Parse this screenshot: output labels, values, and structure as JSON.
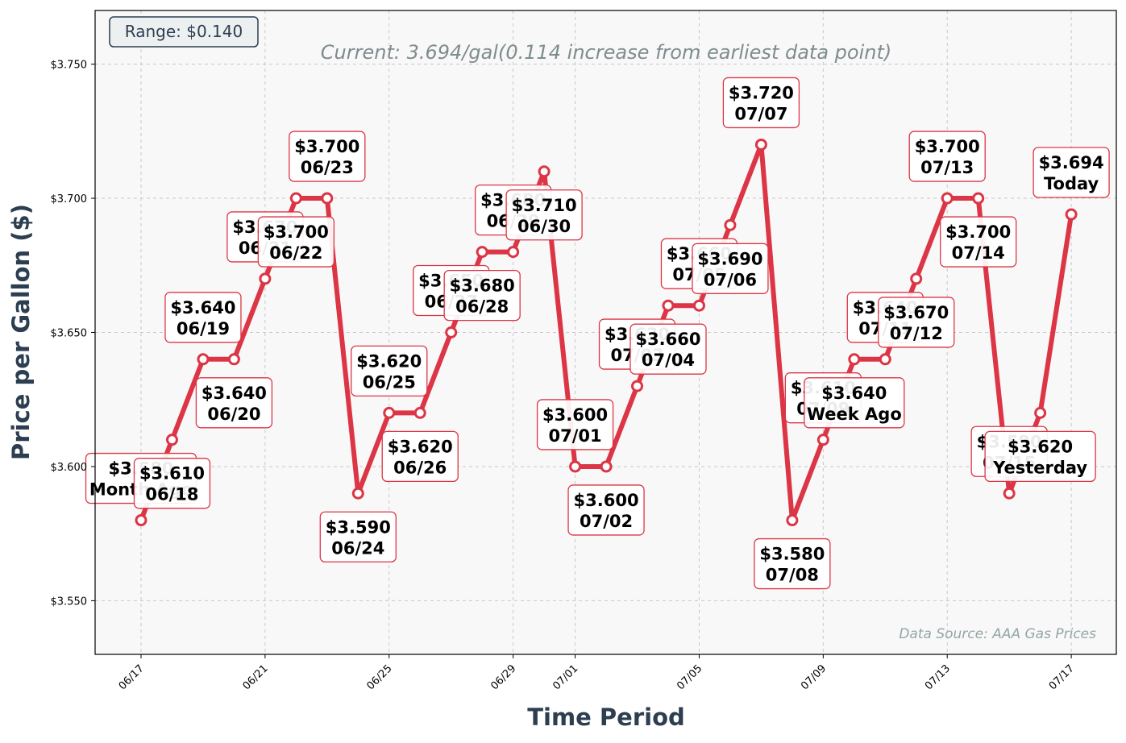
{
  "chart_data": {
    "type": "line",
    "subtitle": "Current: 3.694/gal(0.114 increase from earliest data point)",
    "range_badge": "Range: $0.140",
    "source_note": "Data Source: AAA Gas Prices",
    "xlabel": "Time Period",
    "ylabel": "Price per Gallon ($)",
    "ylim": [
      3.53,
      3.77
    ],
    "yticks": [
      3.55,
      3.6,
      3.65,
      3.7,
      3.75
    ],
    "ytick_labels": [
      "$3.550",
      "$3.600",
      "$3.650",
      "$3.700",
      "$3.750"
    ],
    "xtick_labels": [
      "06/17",
      "06/21",
      "06/25",
      "06/29",
      "07/01",
      "07/05",
      "07/09",
      "07/13",
      "07/17"
    ],
    "grid": true,
    "line_color": "#dc3545",
    "series": [
      {
        "values": [
          {
            "x": "06/17",
            "y": 3.58,
            "label_price": "$3.580",
            "label_date": "Month Ago"
          },
          {
            "x": "06/18",
            "y": 3.61,
            "label_price": "$3.610",
            "label_date": "06/18"
          },
          {
            "x": "06/19",
            "y": 3.64,
            "label_price": "$3.640",
            "label_date": "06/19"
          },
          {
            "x": "06/20",
            "y": 3.64,
            "label_price": "$3.640",
            "label_date": "06/20"
          },
          {
            "x": "06/21",
            "y": 3.67,
            "label_price": "$3.670",
            "label_date": "06/21"
          },
          {
            "x": "06/22",
            "y": 3.7,
            "label_price": "$3.700",
            "label_date": "06/22"
          },
          {
            "x": "06/23",
            "y": 3.7,
            "label_price": "$3.700",
            "label_date": "06/23"
          },
          {
            "x": "06/24",
            "y": 3.59,
            "label_price": "$3.590",
            "label_date": "06/24"
          },
          {
            "x": "06/25",
            "y": 3.62,
            "label_price": "$3.620",
            "label_date": "06/25"
          },
          {
            "x": "06/26",
            "y": 3.62,
            "label_price": "$3.620",
            "label_date": "06/26"
          },
          {
            "x": "06/27",
            "y": 3.65,
            "label_price": "$3.650",
            "label_date": "06/27"
          },
          {
            "x": "06/28",
            "y": 3.68,
            "label_price": "$3.680",
            "label_date": "06/28"
          },
          {
            "x": "06/29",
            "y": 3.68,
            "label_price": "$3.680",
            "label_date": "06/29"
          },
          {
            "x": "06/30",
            "y": 3.71,
            "label_price": "$3.710",
            "label_date": "06/30"
          },
          {
            "x": "07/01",
            "y": 3.6,
            "label_price": "$3.600",
            "label_date": "07/01"
          },
          {
            "x": "07/02",
            "y": 3.6,
            "label_price": "$3.600",
            "label_date": "07/02"
          },
          {
            "x": "07/03",
            "y": 3.63,
            "label_price": "$3.630",
            "label_date": "07/03"
          },
          {
            "x": "07/04",
            "y": 3.66,
            "label_price": "$3.660",
            "label_date": "07/04"
          },
          {
            "x": "07/05",
            "y": 3.66,
            "label_price": "$3.660",
            "label_date": "07/05"
          },
          {
            "x": "07/06",
            "y": 3.69,
            "label_price": "$3.690",
            "label_date": "07/06"
          },
          {
            "x": "07/07",
            "y": 3.72,
            "label_price": "$3.720",
            "label_date": "07/07"
          },
          {
            "x": "07/08",
            "y": 3.58,
            "label_price": "$3.580",
            "label_date": "07/08"
          },
          {
            "x": "07/09",
            "y": 3.61,
            "label_price": "$3.610",
            "label_date": "07/09"
          },
          {
            "x": "07/10",
            "y": 3.64,
            "label_price": "$3.640",
            "label_date": "Week Ago"
          },
          {
            "x": "07/11",
            "y": 3.64,
            "label_price": "$3.640",
            "label_date": "07/11"
          },
          {
            "x": "07/12",
            "y": 3.67,
            "label_price": "$3.670",
            "label_date": "07/12"
          },
          {
            "x": "07/13",
            "y": 3.7,
            "label_price": "$3.700",
            "label_date": "07/13"
          },
          {
            "x": "07/14",
            "y": 3.7,
            "label_price": "$3.700",
            "label_date": "07/14"
          },
          {
            "x": "07/15",
            "y": 3.59,
            "label_price": "$3.590",
            "label_date": "07/15"
          },
          {
            "x": "07/16",
            "y": 3.62,
            "label_price": "$3.620",
            "label_date": "Yesterday"
          },
          {
            "x": "07/17",
            "y": 3.694,
            "label_price": "$3.694",
            "label_date": "Today"
          }
        ]
      }
    ]
  }
}
